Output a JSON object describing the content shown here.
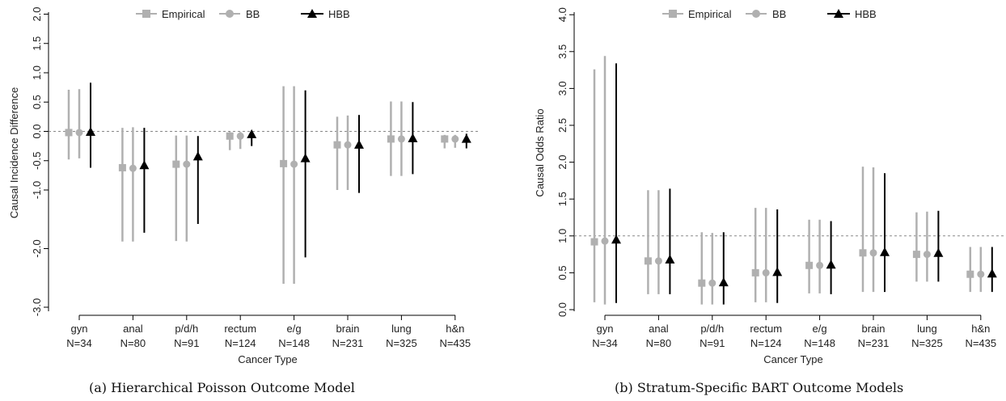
{
  "legend": {
    "empirical": "Empirical",
    "bb": "BB",
    "hbb": "HBB"
  },
  "colors": {
    "empirical": "#b0b0b0",
    "bb": "#b0b0b0",
    "hbb": "#000000",
    "reference_line": "#888888"
  },
  "chart_data": [
    {
      "type": "scatter",
      "caption": "(a) Hierarchical Poisson Outcome Model",
      "xlabel": "Cancer Type",
      "ylabel": "Causal Incidence Difference",
      "categories": [
        "gyn",
        "anal",
        "p/d/h",
        "rectum",
        "e/g",
        "brain",
        "lung",
        "h&n"
      ],
      "category_counts": [
        "N=34",
        "N=80",
        "N=91",
        "N=124",
        "N=148",
        "N=231",
        "N=325",
        "N=435"
      ],
      "yticks": [
        "2.0",
        "1.5",
        "1.0",
        "0.5",
        "0.0",
        "-0.5",
        "-1.0",
        "-2.0",
        "-3.0"
      ],
      "ylim": [
        -3.0,
        2.0
      ],
      "reference_line": 0.0,
      "series": [
        {
          "name": "Empirical",
          "marker": "square",
          "values": [
            -0.02,
            -0.62,
            -0.56,
            -0.08,
            -0.55,
            -0.23,
            -0.13,
            -0.13
          ],
          "lower": [
            -0.48,
            -1.88,
            -1.87,
            -0.32,
            -2.6,
            -1.0,
            -0.76,
            -0.29
          ],
          "upper": [
            0.71,
            0.06,
            -0.07,
            -0.01,
            0.77,
            0.25,
            0.51,
            -0.06
          ]
        },
        {
          "name": "BB",
          "marker": "circle",
          "values": [
            -0.02,
            -0.63,
            -0.56,
            -0.08,
            -0.56,
            -0.23,
            -0.13,
            -0.13
          ],
          "lower": [
            -0.46,
            -1.88,
            -1.88,
            -0.3,
            -2.6,
            -1.0,
            -0.76,
            -0.28
          ],
          "upper": [
            0.72,
            0.07,
            -0.07,
            -0.01,
            0.77,
            0.27,
            0.51,
            -0.06
          ]
        },
        {
          "name": "HBB",
          "marker": "triangle",
          "values": [
            -0.02,
            -0.59,
            -0.44,
            -0.06,
            -0.47,
            -0.24,
            -0.13,
            -0.14
          ],
          "lower": [
            -0.62,
            -1.73,
            -1.58,
            -0.25,
            -2.15,
            -1.05,
            -0.73,
            -0.29
          ],
          "upper": [
            0.83,
            0.06,
            -0.08,
            -0.01,
            0.7,
            0.28,
            0.5,
            -0.04
          ]
        }
      ]
    },
    {
      "type": "scatter",
      "caption": "(b) Stratum-Specific BART Outcome Models",
      "xlabel": "Cancer Type",
      "ylabel": "Causal Odds Ratio",
      "categories": [
        "gyn",
        "anal",
        "p/d/h",
        "rectum",
        "e/g",
        "brain",
        "lung",
        "h&n"
      ],
      "category_counts": [
        "N=34",
        "N=80",
        "N=91",
        "N=124",
        "N=148",
        "N=231",
        "N=325",
        "N=435"
      ],
      "yticks": [
        "4.0",
        "3.5",
        "3.0",
        "2.5",
        "2.0",
        "1.5",
        "1.0",
        "0.5",
        "0.0"
      ],
      "ylim": [
        0.0,
        4.0
      ],
      "reference_line": 1.0,
      "series": [
        {
          "name": "Empirical",
          "marker": "square",
          "values": [
            0.92,
            0.66,
            0.36,
            0.5,
            0.6,
            0.77,
            0.75,
            0.48
          ],
          "lower": [
            0.1,
            0.21,
            0.07,
            0.1,
            0.22,
            0.24,
            0.38,
            0.24
          ],
          "upper": [
            3.26,
            1.62,
            1.05,
            1.38,
            1.22,
            1.94,
            1.32,
            0.85
          ]
        },
        {
          "name": "BB",
          "marker": "circle",
          "values": [
            0.93,
            0.66,
            0.36,
            0.5,
            0.6,
            0.77,
            0.75,
            0.48
          ],
          "lower": [
            0.07,
            0.21,
            0.07,
            0.1,
            0.22,
            0.24,
            0.38,
            0.24
          ],
          "upper": [
            3.44,
            1.62,
            1.04,
            1.38,
            1.22,
            1.93,
            1.33,
            0.85
          ]
        },
        {
          "name": "HBB",
          "marker": "triangle",
          "values": [
            0.94,
            0.67,
            0.36,
            0.5,
            0.6,
            0.77,
            0.76,
            0.48
          ],
          "lower": [
            0.09,
            0.21,
            0.07,
            0.09,
            0.21,
            0.24,
            0.38,
            0.24
          ],
          "upper": [
            3.34,
            1.64,
            1.05,
            1.36,
            1.2,
            1.85,
            1.34,
            0.85
          ]
        }
      ]
    }
  ]
}
